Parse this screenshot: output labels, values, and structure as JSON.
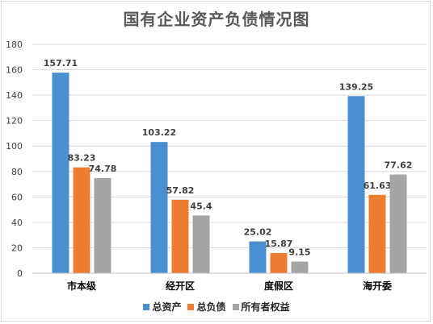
{
  "chart_data": {
    "type": "bar",
    "title": "国有企业资产负债情况图",
    "categories": [
      "市本级",
      "经开区",
      "度假区",
      "海开委"
    ],
    "series": [
      {
        "name": "总资产",
        "color": "#4a90d0",
        "values": [
          157.71,
          103.22,
          25.02,
          139.25
        ]
      },
      {
        "name": "总负债",
        "color": "#ed7d31",
        "values": [
          83.23,
          57.82,
          15.87,
          61.63
        ]
      },
      {
        "name": "所有者权益",
        "color": "#a5a5a5",
        "values": [
          74.78,
          45.4,
          9.15,
          77.62
        ]
      }
    ],
    "value_labels": [
      [
        "157.71",
        "103.22",
        "25.02",
        "139.25"
      ],
      [
        "83.23",
        "57.82",
        "15.87",
        "61.63"
      ],
      [
        "74.78",
        "45.4",
        "9.15",
        "77.62"
      ]
    ],
    "ylim": [
      0,
      180
    ],
    "yticks": [
      "0",
      "20",
      "40",
      "60",
      "80",
      "100",
      "120",
      "140",
      "160",
      "180"
    ],
    "grid": true,
    "legend_position": "bottom"
  }
}
